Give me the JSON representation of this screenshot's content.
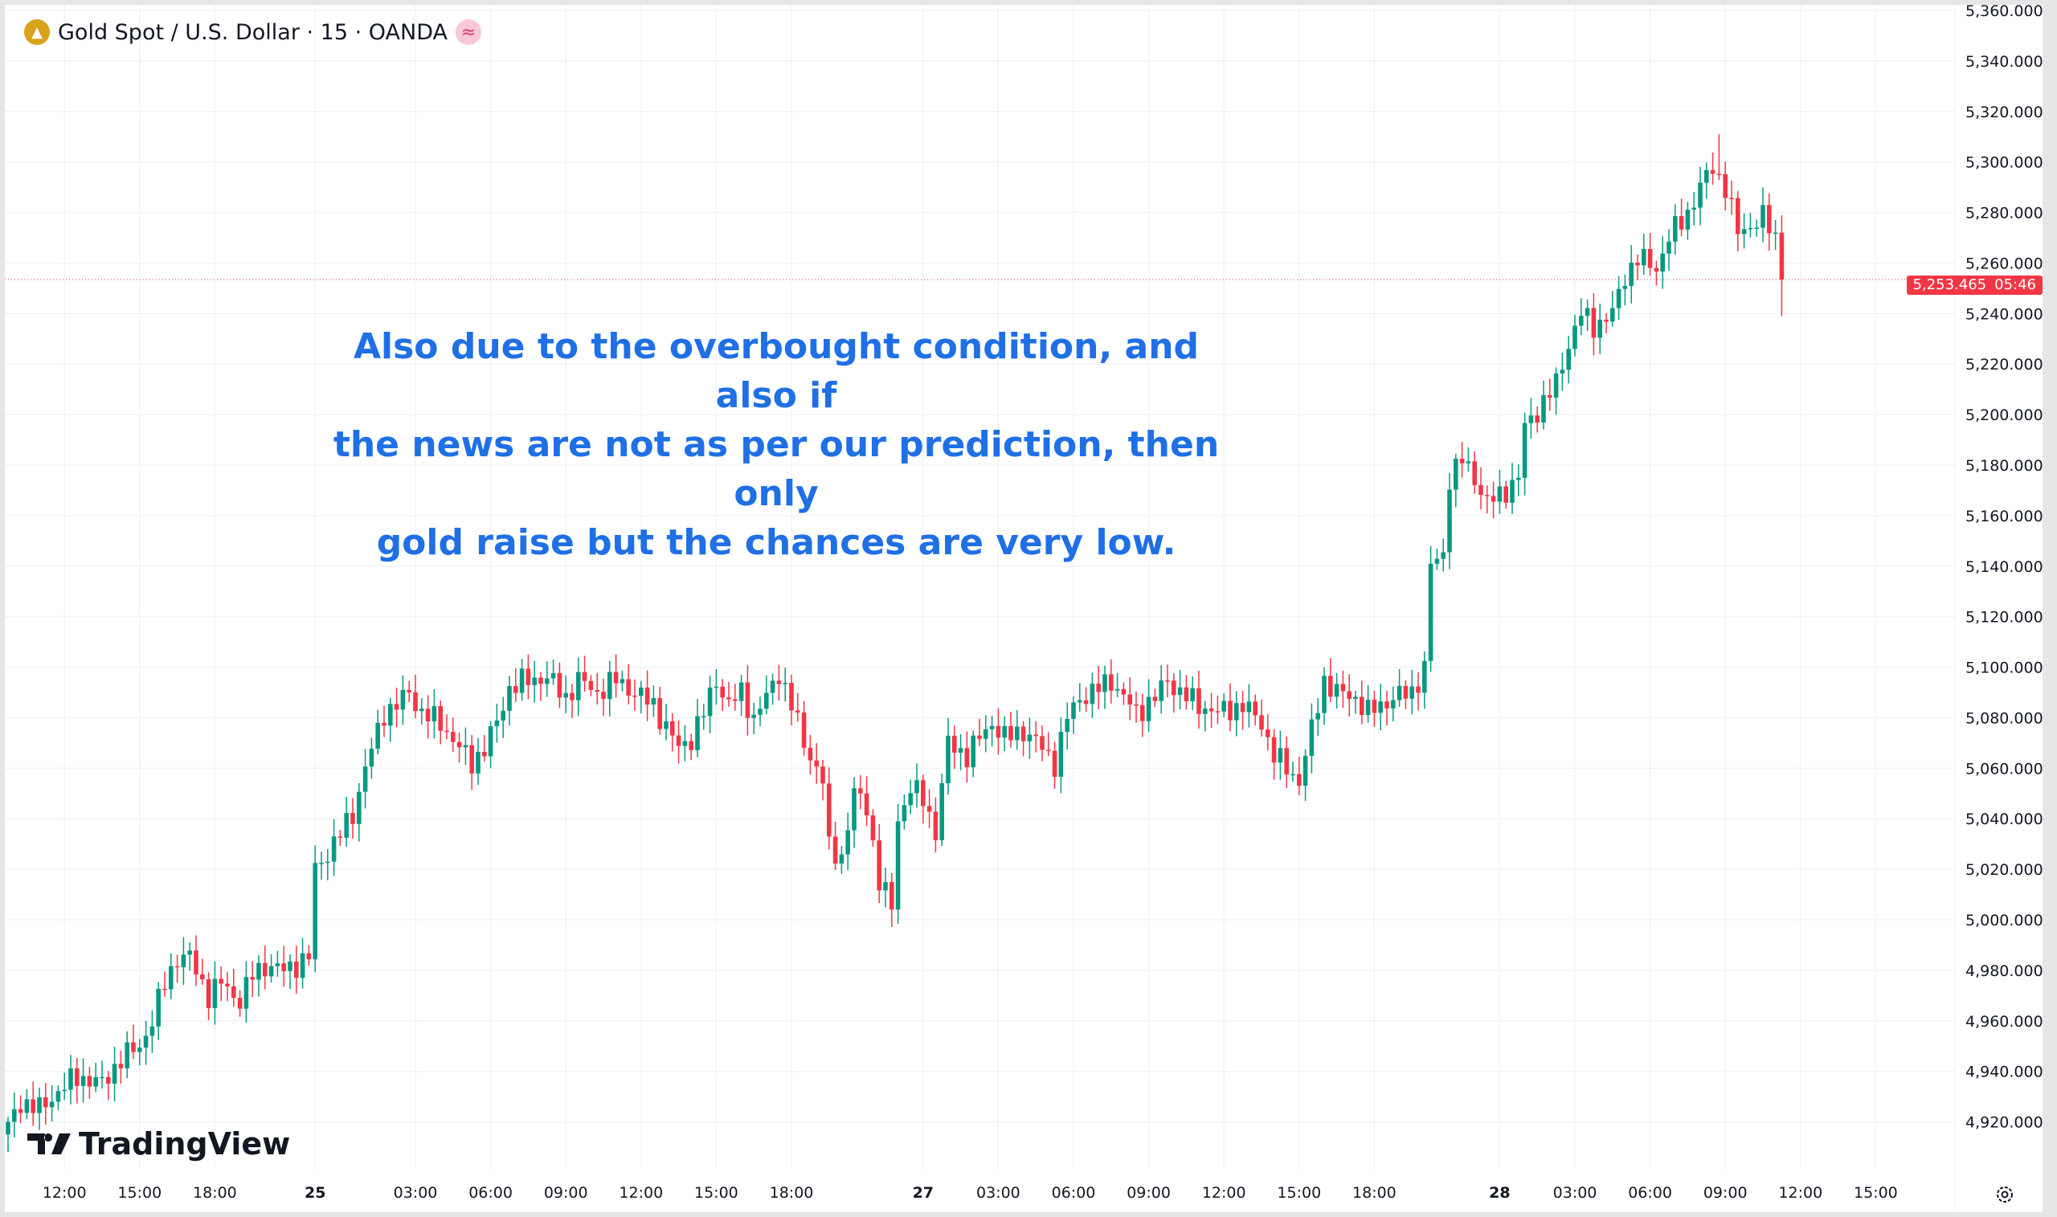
{
  "header": {
    "symbol": "Gold Spot / U.S. Dollar · 15 · OANDA",
    "coin_icon": "gold-bars-icon",
    "wave_icon": "≈"
  },
  "annotation": [
    "Also due to the overbought condition, and also if",
    "the news are not as per our prediction, then only",
    "gold raise but the chances are very low."
  ],
  "logo": "TradingView",
  "last_price": {
    "value": "5,253.465",
    "countdown": "05:46",
    "color": "#f23645"
  },
  "colors": {
    "up": "#089981",
    "down": "#f23645",
    "grid": "#f0f3fa",
    "text": "#131722"
  },
  "chart_data": {
    "type": "candlestick",
    "title": "Gold Spot / U.S. Dollar · 15 · OANDA",
    "ylim": [
      4900,
      5360
    ],
    "y_ticks": [
      "5,360.000",
      "5,340.000",
      "5,320.000",
      "5,300.000",
      "5,280.000",
      "5,260.000",
      "5,240.000",
      "5,220.000",
      "5,200.000",
      "5,180.000",
      "5,160.000",
      "5,140.000",
      "5,120.000",
      "5,100.000",
      "5,080.000",
      "5,060.000",
      "5,040.000",
      "5,020.000",
      "5,000.000",
      "4,980.000",
      "4,960.000",
      "4,940.000",
      "4,920.000"
    ],
    "y_tick_values": [
      5360,
      5340,
      5320,
      5300,
      5280,
      5260,
      5240,
      5220,
      5200,
      5180,
      5160,
      5140,
      5120,
      5100,
      5080,
      5060,
      5040,
      5020,
      5000,
      4980,
      4960,
      4940,
      4920
    ],
    "x_ticks": [
      {
        "label": "12:00",
        "bar": 9
      },
      {
        "label": "15:00",
        "bar": 21
      },
      {
        "label": "18:00",
        "bar": 33
      },
      {
        "label": "25",
        "bar": 49,
        "bold": true
      },
      {
        "label": "03:00",
        "bar": 65
      },
      {
        "label": "06:00",
        "bar": 77
      },
      {
        "label": "09:00",
        "bar": 89
      },
      {
        "label": "12:00",
        "bar": 101
      },
      {
        "label": "15:00",
        "bar": 113
      },
      {
        "label": "18:00",
        "bar": 125
      },
      {
        "label": "27",
        "bar": 146,
        "bold": true
      },
      {
        "label": "03:00",
        "bar": 158
      },
      {
        "label": "06:00",
        "bar": 170
      },
      {
        "label": "09:00",
        "bar": 182
      },
      {
        "label": "12:00",
        "bar": 194
      },
      {
        "label": "15:00",
        "bar": 206
      },
      {
        "label": "18:00",
        "bar": 218
      },
      {
        "label": "28",
        "bar": 238,
        "bold": true
      },
      {
        "label": "03:00",
        "bar": 250
      },
      {
        "label": "06:00",
        "bar": 262
      },
      {
        "label": "09:00",
        "bar": 274
      },
      {
        "label": "12:00",
        "bar": 286
      },
      {
        "label": "15:00",
        "bar": 298
      }
    ],
    "close_anchors": [
      [
        0,
        4918
      ],
      [
        2,
        4928
      ],
      [
        5,
        4925
      ],
      [
        8,
        4932
      ],
      [
        11,
        4938
      ],
      [
        15,
        4935
      ],
      [
        18,
        4945
      ],
      [
        21,
        4950
      ],
      [
        23,
        4960
      ],
      [
        25,
        4975
      ],
      [
        27,
        4985
      ],
      [
        29,
        4985
      ],
      [
        32,
        4970
      ],
      [
        34,
        4975
      ],
      [
        37,
        4968
      ],
      [
        39,
        4978
      ],
      [
        41,
        4982
      ],
      [
        44,
        4980
      ],
      [
        48,
        4985
      ],
      [
        49,
        5020
      ],
      [
        52,
        5030
      ],
      [
        55,
        5042
      ],
      [
        57,
        5060
      ],
      [
        60,
        5082
      ],
      [
        62,
        5085
      ],
      [
        64,
        5090
      ],
      [
        66,
        5082
      ],
      [
        69,
        5078
      ],
      [
        72,
        5068
      ],
      [
        74,
        5062
      ],
      [
        76,
        5068
      ],
      [
        78,
        5078
      ],
      [
        80,
        5092
      ],
      [
        83,
        5095
      ],
      [
        86,
        5096
      ],
      [
        89,
        5088
      ],
      [
        91,
        5095
      ],
      [
        94,
        5090
      ],
      [
        97,
        5095
      ],
      [
        100,
        5090
      ],
      [
        103,
        5085
      ],
      [
        107,
        5068
      ],
      [
        109,
        5072
      ],
      [
        111,
        5082
      ],
      [
        113,
        5095
      ],
      [
        115,
        5085
      ],
      [
        117,
        5090
      ],
      [
        119,
        5080
      ],
      [
        121,
        5088
      ],
      [
        123,
        5098
      ],
      [
        125,
        5085
      ],
      [
        127,
        5070
      ],
      [
        130,
        5055
      ],
      [
        131,
        5028
      ],
      [
        133,
        5025
      ],
      [
        135,
        5050
      ],
      [
        137,
        5045
      ],
      [
        139,
        5015
      ],
      [
        141,
        5005
      ],
      [
        142,
        5040
      ],
      [
        144,
        5052
      ],
      [
        146,
        5048
      ],
      [
        148,
        5035
      ],
      [
        150,
        5070
      ],
      [
        153,
        5065
      ],
      [
        155,
        5072
      ],
      [
        157,
        5078
      ],
      [
        159,
        5072
      ],
      [
        162,
        5075
      ],
      [
        165,
        5068
      ],
      [
        167,
        5062
      ],
      [
        169,
        5080
      ],
      [
        171,
        5088
      ],
      [
        173,
        5090
      ],
      [
        176,
        5095
      ],
      [
        178,
        5088
      ],
      [
        180,
        5082
      ],
      [
        183,
        5088
      ],
      [
        185,
        5095
      ],
      [
        187,
        5090
      ],
      [
        190,
        5085
      ],
      [
        193,
        5082
      ],
      [
        197,
        5085
      ],
      [
        200,
        5078
      ],
      [
        202,
        5065
      ],
      [
        204,
        5060
      ],
      [
        206,
        5055
      ],
      [
        208,
        5075
      ],
      [
        210,
        5095
      ],
      [
        212,
        5090
      ],
      [
        215,
        5088
      ],
      [
        217,
        5082
      ],
      [
        221,
        5088
      ],
      [
        224,
        5090
      ],
      [
        226,
        5100
      ],
      [
        227,
        5140
      ],
      [
        229,
        5145
      ],
      [
        230,
        5175
      ],
      [
        232,
        5182
      ],
      [
        234,
        5175
      ],
      [
        236,
        5165
      ],
      [
        238,
        5168
      ],
      [
        241,
        5175
      ],
      [
        242,
        5195
      ],
      [
        245,
        5205
      ],
      [
        247,
        5212
      ],
      [
        249,
        5228
      ],
      [
        251,
        5240
      ],
      [
        253,
        5235
      ],
      [
        256,
        5240
      ],
      [
        258,
        5255
      ],
      [
        260,
        5262
      ],
      [
        263,
        5258
      ],
      [
        265,
        5270
      ],
      [
        268,
        5280
      ],
      [
        270,
        5290
      ],
      [
        272,
        5298
      ],
      [
        274,
        5290
      ],
      [
        276,
        5272
      ],
      [
        278,
        5275
      ],
      [
        280,
        5278
      ],
      [
        282,
        5270
      ],
      [
        283,
        5253.465
      ]
    ]
  }
}
